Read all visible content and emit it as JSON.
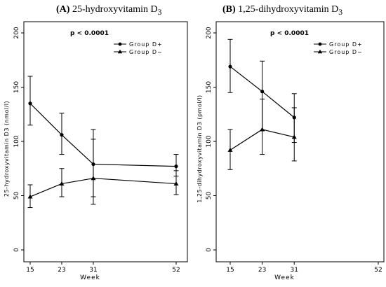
{
  "chart_data": [
    {
      "type": "line",
      "title_prefix": "(A)",
      "title": "25-hydroxyvitamin D",
      "title_sub": "3",
      "annotation": "p < 0.0001",
      "xlabel": "Week",
      "ylabel": "25-hydroxyvitamin D3 (nmol/l)",
      "x_ticks": [
        15,
        23,
        31,
        52
      ],
      "y_ticks": [
        0,
        50,
        100,
        150,
        200
      ],
      "xlim": [
        15,
        52
      ],
      "ylim": [
        0,
        200
      ],
      "legend_position": "top-right",
      "series": [
        {
          "name": "Group D+",
          "marker": "circle",
          "x": [
            15,
            23,
            31,
            52
          ],
          "y": [
            135,
            106,
            79,
            77
          ],
          "lower": [
            115,
            88,
            49,
            68
          ],
          "upper": [
            160,
            126,
            111,
            88
          ]
        },
        {
          "name": "Group D−",
          "marker": "triangle",
          "x": [
            15,
            23,
            31,
            52
          ],
          "y": [
            49,
            61,
            66,
            61
          ],
          "lower": [
            39,
            49,
            42,
            51
          ],
          "upper": [
            60,
            75,
            102,
            73
          ]
        }
      ]
    },
    {
      "type": "line",
      "title_prefix": "(B)",
      "title": "1,25-dihydroxyvitamin D",
      "title_sub": "3",
      "annotation": "p < 0.0001",
      "xlabel": "Week",
      "ylabel": "1,25-dihydroxyvitamin D3 (pmol/l)",
      "x_ticks": [
        15,
        23,
        31,
        52
      ],
      "y_ticks": [
        0,
        50,
        100,
        150,
        200
      ],
      "xlim": [
        15,
        52
      ],
      "ylim": [
        0,
        200
      ],
      "legend_position": "top-right",
      "series": [
        {
          "name": "Group D+",
          "marker": "circle",
          "x": [
            15,
            23,
            31
          ],
          "y": [
            169,
            146,
            122
          ],
          "lower": [
            145,
            110,
            99
          ],
          "upper": [
            194,
            174,
            144
          ]
        },
        {
          "name": "Group D−",
          "marker": "triangle",
          "x": [
            15,
            23,
            31
          ],
          "y": [
            92,
            111,
            104
          ],
          "lower": [
            74,
            88,
            82
          ],
          "upper": [
            111,
            139,
            131
          ]
        }
      ]
    }
  ]
}
